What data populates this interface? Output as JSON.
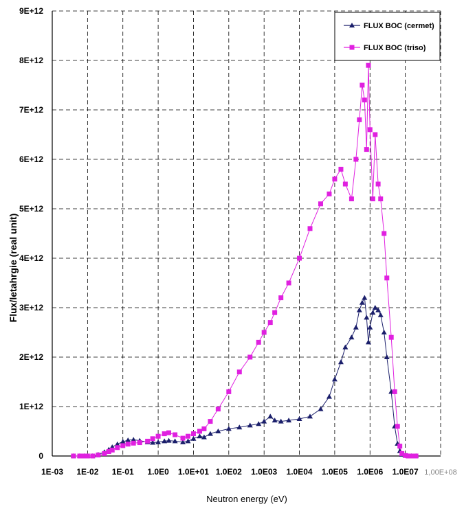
{
  "chart_data": {
    "type": "line",
    "title": "",
    "xlabel": "Neutron energy (eV)",
    "ylabel": "Flux/letahrgie (real unit)",
    "x_scale": "log",
    "xlim": [
      0.001,
      100000000
    ],
    "ylim": [
      0,
      9000000000000.0
    ],
    "grid": true,
    "legend_position": "top-right",
    "x_tick_labels": [
      "1E-03",
      "1E-02",
      "1E-01",
      "1.0E0",
      "1.0E+01",
      "1.0E02",
      "1.0E03",
      "1.0E04",
      "1.0E05",
      "1.0E06",
      "1.0E07",
      "1,00E+08"
    ],
    "y_tick_labels": [
      "0",
      "1E+12",
      "2E+12",
      "3E+12",
      "4E+12",
      "5E+12",
      "6E+12",
      "7E+12",
      "8E+12",
      "9E+12"
    ],
    "series": [
      {
        "name": "FLUX BOC (cermet)",
        "color": "#1b1f6b",
        "marker": "triangle",
        "x": [
          0.004,
          0.006,
          0.008,
          0.01,
          0.014,
          0.02,
          0.03,
          0.04,
          0.05,
          0.07,
          0.1,
          0.14,
          0.2,
          0.3,
          0.5,
          0.7,
          1,
          1.5,
          2,
          3,
          5,
          7,
          10,
          15,
          20,
          30,
          50,
          100,
          200,
          400,
          700,
          1000,
          1500,
          2000,
          3000,
          5000,
          10000,
          20000,
          40000,
          70000,
          100000,
          150000,
          200000,
          300000,
          400000,
          500000,
          600000,
          700000,
          800000,
          900000,
          1000000,
          1200000,
          1400000,
          1700000,
          2000000,
          2500000,
          3000000,
          4000000,
          5000000,
          6000000,
          7000000,
          8000000,
          10000000,
          12000000,
          15000000,
          20000000
        ],
        "values": [
          0,
          0,
          0,
          0,
          0,
          30000000000.0,
          80000000000.0,
          130000000000.0,
          180000000000.0,
          240000000000.0,
          290000000000.0,
          320000000000.0,
          330000000000.0,
          310000000000.0,
          280000000000.0,
          270000000000.0,
          280000000000.0,
          300000000000.0,
          310000000000.0,
          300000000000.0,
          280000000000.0,
          300000000000.0,
          350000000000.0,
          400000000000.0,
          380000000000.0,
          450000000000.0,
          500000000000.0,
          550000000000.0,
          580000000000.0,
          620000000000.0,
          650000000000.0,
          700000000000.0,
          800000000000.0,
          720000000000.0,
          700000000000.0,
          720000000000.0,
          750000000000.0,
          800000000000.0,
          950000000000.0,
          1200000000000.0,
          1550000000000.0,
          1900000000000.0,
          2200000000000.0,
          2400000000000.0,
          2600000000000.0,
          2950000000000.0,
          3100000000000.0,
          3200000000000.0,
          2800000000000.0,
          2300000000000.0,
          2600000000000.0,
          2900000000000.0,
          3000000000000.0,
          2950000000000.0,
          2850000000000.0,
          2500000000000.0,
          2000000000000.0,
          1300000000000.0,
          600000000000.0,
          250000000000.0,
          100000000000.0,
          30000000000.0,
          10000000000.0,
          0,
          0,
          0
        ]
      },
      {
        "name": "FLUX BOC (triso)",
        "color": "#e020e0",
        "marker": "square",
        "x": [
          0.004,
          0.006,
          0.008,
          0.01,
          0.014,
          0.02,
          0.03,
          0.04,
          0.05,
          0.07,
          0.1,
          0.14,
          0.2,
          0.3,
          0.5,
          0.7,
          1,
          1.5,
          2,
          3,
          5,
          7,
          10,
          15,
          20,
          30,
          50,
          100,
          200,
          400,
          700,
          1000,
          1500,
          2000,
          3000,
          5000,
          10000,
          20000,
          40000,
          70000,
          100000,
          150000,
          200000,
          300000,
          400000,
          500000,
          600000,
          700000,
          800000,
          900000,
          1000000,
          1200000,
          1400000,
          1700000,
          2000000,
          2500000,
          3000000,
          4000000,
          5000000,
          6000000,
          7000000,
          8000000,
          10000000,
          12000000,
          15000000,
          20000000
        ],
        "values": [
          0,
          0,
          0,
          0,
          0,
          20000000000.0,
          50000000000.0,
          90000000000.0,
          120000000000.0,
          170000000000.0,
          210000000000.0,
          240000000000.0,
          260000000000.0,
          270000000000.0,
          300000000000.0,
          350000000000.0,
          400000000000.0,
          450000000000.0,
          470000000000.0,
          430000000000.0,
          360000000000.0,
          400000000000.0,
          450000000000.0,
          500000000000.0,
          550000000000.0,
          700000000000.0,
          950000000000.0,
          1300000000000.0,
          1700000000000.0,
          2000000000000.0,
          2300000000000.0,
          2500000000000.0,
          2700000000000.0,
          2900000000000.0,
          3200000000000.0,
          3500000000000.0,
          4000000000000.0,
          4600000000000.0,
          5100000000000.0,
          5300000000000.0,
          5600000000000.0,
          5800000000000.0,
          5500000000000.0,
          5200000000000.0,
          6000000000000.0,
          6800000000000.0,
          7500000000000.0,
          7200000000000.0,
          6200000000000.0,
          7900000000000.0,
          6600000000000.0,
          5200000000000.0,
          6500000000000.0,
          5500000000000.0,
          5200000000000.0,
          4500000000000.0,
          3600000000000.0,
          2400000000000.0,
          1300000000000.0,
          600000000000.0,
          200000000000.0,
          50000000000.0,
          10000000000.0,
          0,
          0,
          0
        ]
      }
    ]
  }
}
